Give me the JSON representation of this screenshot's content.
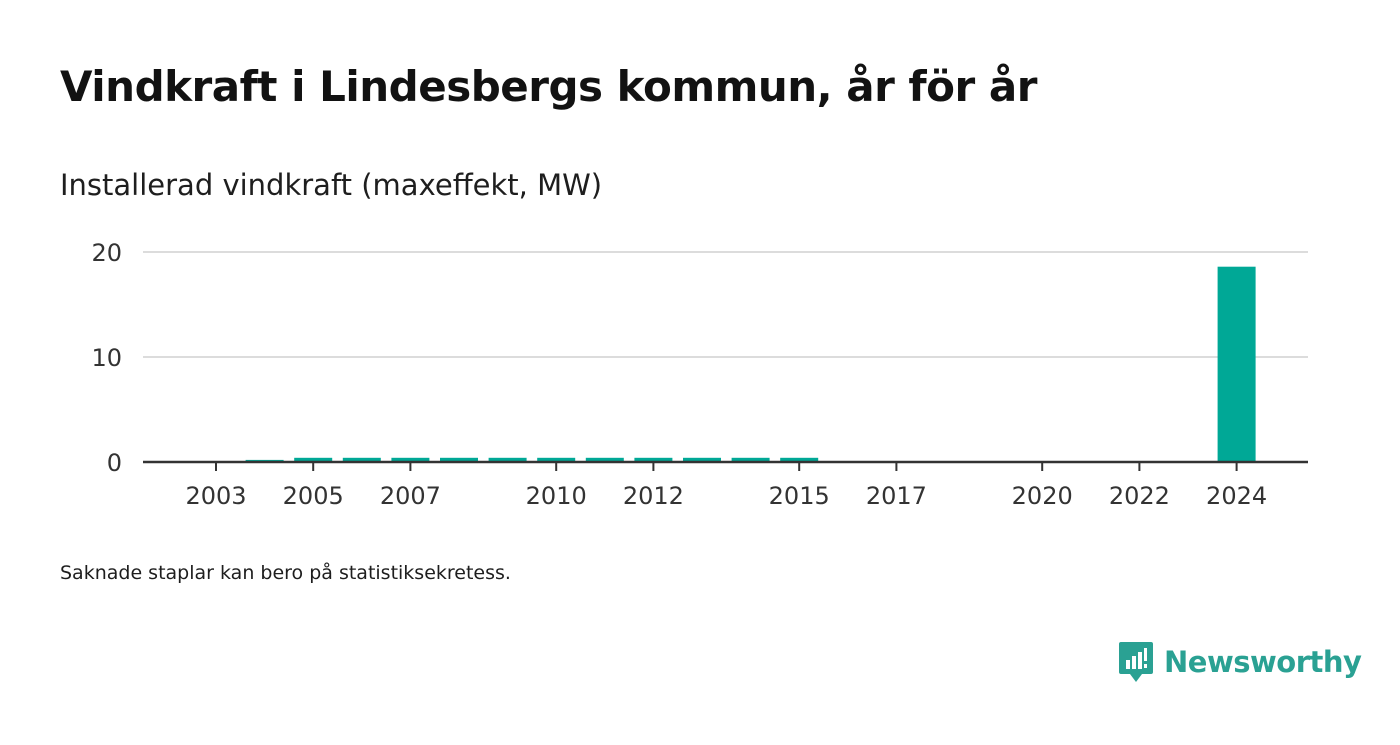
{
  "title": "Vindkraft i Lindesbergs kommun, år för år",
  "subtitle": "Installerad vindkraft (maxeffekt, MW)",
  "footnote": "Saknade staplar kan bero på statistiksekretess.",
  "brand": {
    "name": "Newsworthy",
    "color": "#2aa193",
    "logo_icon": "newsworthy-logo-icon"
  },
  "colors": {
    "bar": "#00a896",
    "grid": "#dcdcdc",
    "axis": "#333333",
    "text": "#333333"
  },
  "chart_data": {
    "type": "bar",
    "categories": [
      "2003",
      "2004",
      "2005",
      "2006",
      "2007",
      "2008",
      "2009",
      "2010",
      "2011",
      "2012",
      "2013",
      "2014",
      "2015",
      "2016",
      "2017",
      "2018",
      "2019",
      "2020",
      "2021",
      "2022",
      "2023",
      "2024"
    ],
    "values": [
      null,
      0.2,
      0.4,
      0.4,
      0.4,
      0.4,
      0.4,
      0.4,
      0.4,
      0.4,
      0.4,
      0.4,
      0.4,
      null,
      null,
      null,
      null,
      null,
      null,
      null,
      null,
      18.6
    ],
    "x_tick_labels": [
      "2003",
      "2005",
      "2007",
      "2010",
      "2012",
      "2015",
      "2017",
      "2020",
      "2022",
      "2024"
    ],
    "y_ticks": [
      0,
      10,
      20
    ],
    "ylim": [
      0,
      20
    ],
    "xlabel": "",
    "ylabel": "",
    "grid": true
  }
}
